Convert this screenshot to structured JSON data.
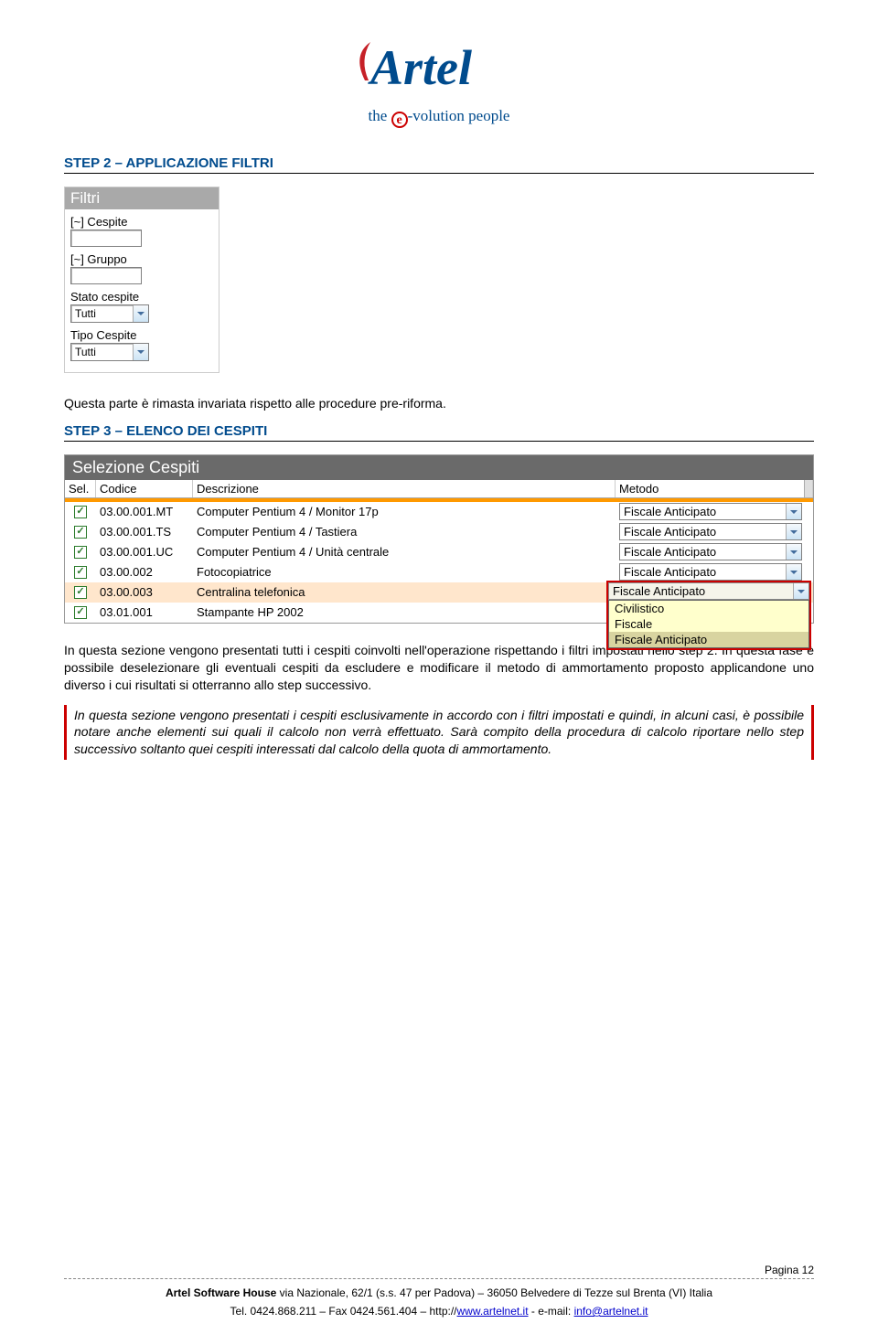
{
  "logo": {
    "name": "Artel",
    "tagline_before": "the ",
    "tagline_e": "e",
    "tagline_after": "-volution people",
    "text_color": "#004b8d",
    "brush_color": "#c62128"
  },
  "step2": {
    "heading": "STEP 2 – APPLICAZIONE FILTRI",
    "filtri": {
      "panel_title": "Filtri",
      "fields": [
        {
          "label": "[~] Cespite",
          "type": "text",
          "value": ""
        },
        {
          "label": "[~] Gruppo",
          "type": "text",
          "value": ""
        },
        {
          "label": "Stato cespite",
          "type": "select",
          "value": "Tutti"
        },
        {
          "label": "Tipo Cespite",
          "type": "select",
          "value": "Tutti"
        }
      ]
    },
    "body": "Questa parte è rimasta invariata rispetto alle procedure pre-riforma."
  },
  "step3": {
    "heading": "STEP 3 – ELENCO DEI CESPITI",
    "table": {
      "panel_title": "Selezione Cespiti",
      "columns": {
        "sel": "Sel.",
        "codice": "Codice",
        "descrizione": "Descrizione",
        "metodo": "Metodo"
      },
      "rows": [
        {
          "checked": true,
          "codice": "03.00.001.MT",
          "descrizione": "Computer Pentium 4 / Monitor 17p",
          "metodo": "Fiscale Anticipato",
          "highlight": false
        },
        {
          "checked": true,
          "codice": "03.00.001.TS",
          "descrizione": "Computer Pentium 4 / Tastiera",
          "metodo": "Fiscale Anticipato",
          "highlight": false
        },
        {
          "checked": true,
          "codice": "03.00.001.UC",
          "descrizione": "Computer Pentium 4 / Unità centrale",
          "metodo": "Fiscale Anticipato",
          "highlight": false
        },
        {
          "checked": true,
          "codice": "03.00.002",
          "descrizione": "Fotocopiatrice",
          "metodo": "Fiscale Anticipato",
          "highlight": false
        },
        {
          "checked": true,
          "codice": "03.00.003",
          "descrizione": "Centralina telefonica",
          "metodo": "Fiscale Anticipato",
          "highlight": true
        },
        {
          "checked": true,
          "codice": "03.01.001",
          "descrizione": "Stampante HP  2002",
          "metodo": "",
          "highlight": false
        }
      ],
      "dropdown": {
        "selected": "Fiscale Anticipato",
        "options": [
          "Civilistico",
          "Fiscale",
          "Fiscale Anticipato"
        ],
        "highlight_index": 2,
        "list_bg": "#ffffcc",
        "sel_bg": "#d8d4a0",
        "box_border": "#c00"
      }
    },
    "para1": "In questa sezione vengono presentati tutti i cespiti coinvolti nell'operazione rispettando i filtri impostati nello step 2. In questa fase è possibile deselezionare gli eventuali cespiti da escludere e modificare il metodo di ammortamento proposto applicandone uno diverso i cui risultati si otterranno allo step successivo.",
    "para2": "In questa sezione vengono presentati i cespiti esclusivamente in accordo con i filtri impostati e quindi, in alcuni casi, è possibile notare anche elementi sui quali il calcolo non verrà effettuato. Sarà compito della procedura di calcolo riportare nello step successivo soltanto quei cespiti interessati dal calcolo della quota di ammortamento."
  },
  "footer": {
    "page_label": "Pagina 12",
    "company": "Artel Software House",
    "address": " via Nazionale, 62/1 (s.s. 47 per Padova) – 36050 Belvedere di Tezze sul Brenta (VI) Italia",
    "line2_prefix": "Tel. 0424.868.211 – Fax 0424.561.404 – http://",
    "url": "www.artelnet.it",
    "email_prefix": " - e-mail: ",
    "email": "info@artelnet.it"
  },
  "colors": {
    "heading": "#004b8d",
    "note_border": "#c00",
    "orange": "#ff9900",
    "highlight_row": "#ffe6cc",
    "grey_title_bg": "#a9a9a9",
    "dark_title_bg": "#6a6a6a",
    "check_green": "#2a7a2a",
    "link": "#0000cc"
  }
}
